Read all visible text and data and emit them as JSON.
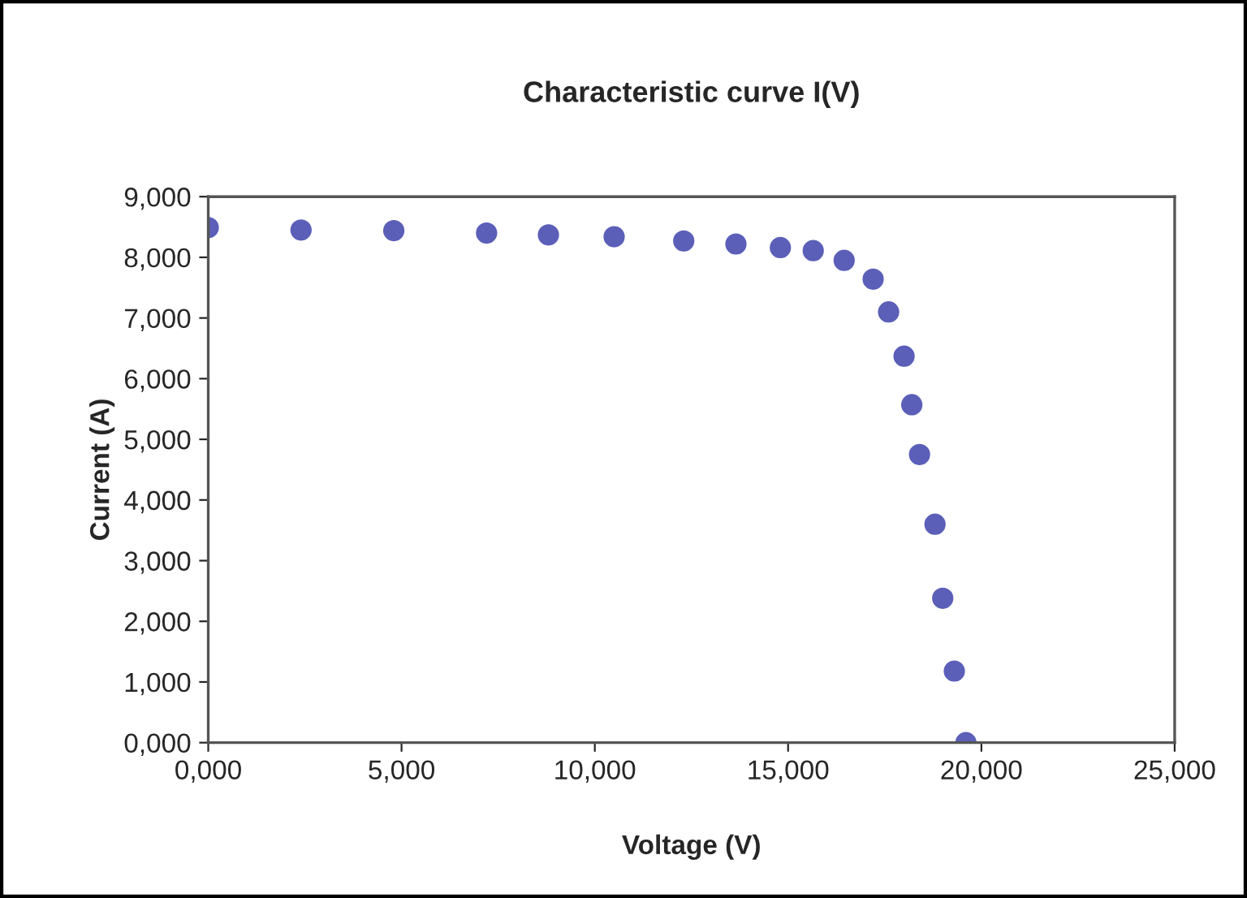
{
  "chart_data": {
    "type": "scatter",
    "title": "Characteristic curve I(V)",
    "xlabel": "Voltage (V)",
    "ylabel": "Current (A)",
    "x": [
      0,
      2.4,
      4.8,
      7.2,
      8.8,
      10.5,
      12.3,
      13.65,
      14.8,
      15.65,
      16.45,
      17.2,
      17.6,
      18.0,
      18.2,
      18.4,
      18.8,
      19.0,
      19.3,
      19.6
    ],
    "series": [
      {
        "color": "#5b5fb8",
        "values": [
          8.49,
          8.45,
          8.44,
          8.4,
          8.37,
          8.34,
          8.27,
          8.22,
          8.16,
          8.11,
          7.95,
          7.64,
          7.1,
          6.37,
          5.57,
          4.75,
          3.6,
          2.38,
          1.18,
          0
        ]
      }
    ],
    "xlim": [
      0,
      25
    ],
    "ylim": [
      0,
      9
    ],
    "xticks": [
      {
        "value": 0,
        "label": "0,000"
      },
      {
        "value": 5,
        "label": "5,000"
      },
      {
        "value": 10,
        "label": "10,000"
      },
      {
        "value": 15,
        "label": "15,000"
      },
      {
        "value": 20,
        "label": "20,000"
      },
      {
        "value": 25,
        "label": "25,000"
      }
    ],
    "yticks": [
      {
        "value": 0,
        "label": "0,000"
      },
      {
        "value": 1,
        "label": "1,000"
      },
      {
        "value": 2,
        "label": "2,000"
      },
      {
        "value": 3,
        "label": "3,000"
      },
      {
        "value": 4,
        "label": "4,000"
      },
      {
        "value": 5,
        "label": "5,000"
      },
      {
        "value": 6,
        "label": "6,000"
      },
      {
        "value": 7,
        "label": "7,000"
      },
      {
        "value": 8,
        "label": "8,000"
      },
      {
        "value": 9,
        "label": "9,000"
      }
    ],
    "marker": "circle",
    "grid": false,
    "legend": false
  }
}
